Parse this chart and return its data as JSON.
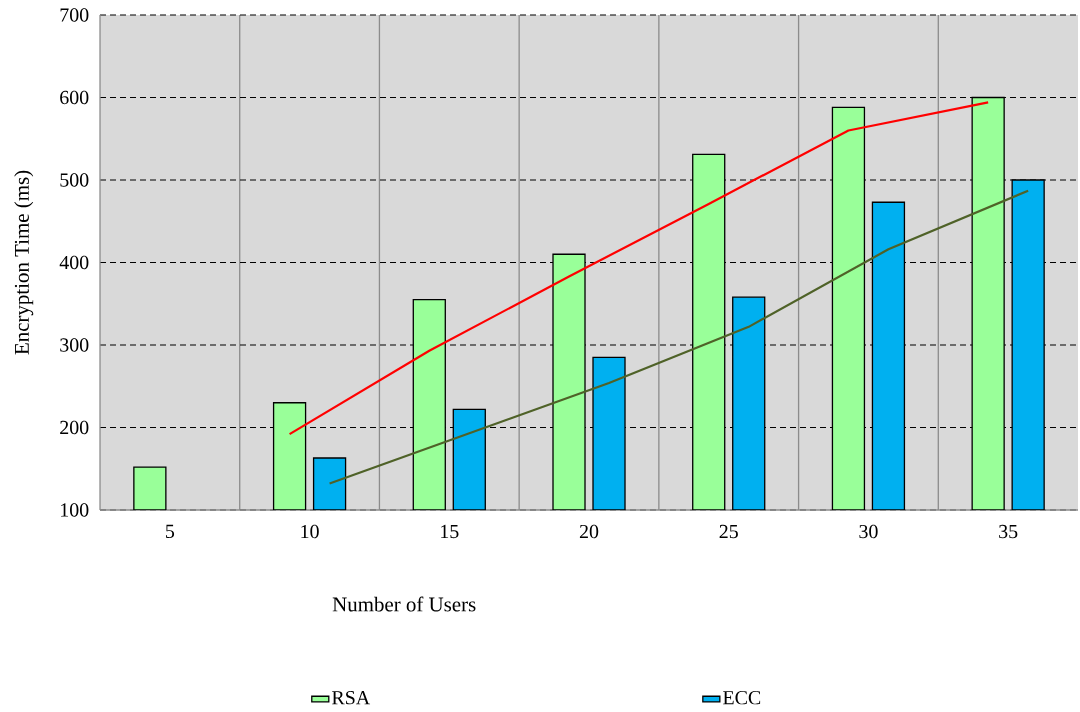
{
  "chart_data": {
    "type": "bar",
    "xlabel": "Number of Users",
    "ylabel": "Encryption Time (ms)",
    "categories": [
      "5",
      "10",
      "15",
      "20",
      "25",
      "30",
      "35"
    ],
    "series": [
      {
        "name": "RSA",
        "color": "#99ff99",
        "values": [
          152,
          230,
          355,
          410,
          531,
          588,
          600
        ]
      },
      {
        "name": "ECC",
        "color": "#00b0f0",
        "values": [
          null,
          163,
          222,
          285,
          358,
          473,
          500
        ]
      },
      {
        "type": "line",
        "color": "#ff0000",
        "values": [
          null,
          192,
          293,
          383,
          471,
          560,
          594
        ]
      },
      {
        "type": "line",
        "color": "#4f6228",
        "values": [
          null,
          132,
          193,
          254,
          322,
          416,
          487
        ]
      }
    ],
    "ylim": [
      100,
      700
    ],
    "yticks": [
      100,
      200,
      300,
      400,
      500,
      600,
      700
    ],
    "grid": true,
    "legend": "bottom"
  }
}
